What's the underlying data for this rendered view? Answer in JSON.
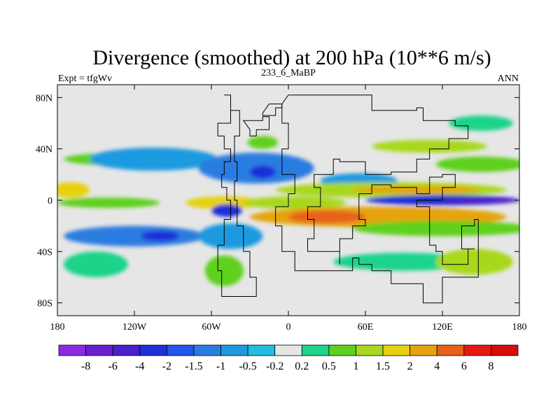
{
  "chart_data": {
    "type": "heatmap",
    "title": "Divergence (smoothed) at 200 hPa (10**6 m/s)",
    "subtitle_left": "Expt = tfgWv",
    "subtitle_center": "233_6_MaBP",
    "subtitle_right": "ANN",
    "x_ticks": [
      "180",
      "120W",
      "60W",
      "0",
      "60E",
      "120E",
      "180"
    ],
    "x_tick_values": [
      -180,
      -120,
      -60,
      0,
      60,
      120,
      180
    ],
    "y_ticks": [
      "80N",
      "40N",
      "0",
      "40S",
      "80S"
    ],
    "y_tick_values": [
      80,
      40,
      0,
      -40,
      -80
    ],
    "xlim": [
      -180,
      180
    ],
    "ylim": [
      -90,
      90
    ],
    "colorbar_labels": [
      "-8",
      "-6",
      "-4",
      "-2",
      "-1.5",
      "-1",
      "-0.5",
      "-0.2",
      "0.2",
      "0.5",
      "1",
      "1.5",
      "2",
      "4",
      "6",
      "8"
    ],
    "colorbar_colors": [
      "#8a2be2",
      "#6a1fd0",
      "#4a20c8",
      "#1f2fd8",
      "#2255e8",
      "#2a7de0",
      "#1e9ae0",
      "#22bce0",
      "#e6e6e6",
      "#1fd38a",
      "#5fd01f",
      "#a8d81f",
      "#e6d10f",
      "#e6a30f",
      "#e6621a",
      "#e61a10",
      "#d80a0a"
    ],
    "blobs": [
      {
        "lon": -130,
        "lat": 32,
        "rx": 45,
        "ry": 5,
        "level": 10
      },
      {
        "lon": -20,
        "lat": 45,
        "rx": 12,
        "ry": 5,
        "level": 10
      },
      {
        "lon": 110,
        "lat": 42,
        "rx": 45,
        "ry": 5,
        "level": 11
      },
      {
        "lon": 150,
        "lat": 28,
        "rx": 35,
        "ry": 6,
        "level": 10
      },
      {
        "lon": 150,
        "lat": 60,
        "rx": 25,
        "ry": 6,
        "level": 9
      },
      {
        "lon": -105,
        "lat": 32,
        "rx": 50,
        "ry": 9,
        "level": 6
      },
      {
        "lon": -25,
        "lat": 25,
        "rx": 45,
        "ry": 12,
        "level": 5
      },
      {
        "lon": -20,
        "lat": 22,
        "rx": 10,
        "ry": 5,
        "level": 3
      },
      {
        "lon": 55,
        "lat": 15,
        "rx": 30,
        "ry": 6,
        "level": 6
      },
      {
        "lon": -170,
        "lat": 8,
        "rx": 15,
        "ry": 6,
        "level": 12
      },
      {
        "lon": 80,
        "lat": 8,
        "rx": 90,
        "ry": 6,
        "level": 11
      },
      {
        "lon": 100,
        "lat": 8,
        "rx": 50,
        "ry": 3,
        "level": 13
      },
      {
        "lon": -140,
        "lat": -2,
        "rx": 40,
        "ry": 4,
        "level": 10
      },
      {
        "lon": -50,
        "lat": -2,
        "rx": 30,
        "ry": 5,
        "level": 12
      },
      {
        "lon": 5,
        "lat": -2,
        "rx": 40,
        "ry": 5,
        "level": 11
      },
      {
        "lon": 120,
        "lat": 0,
        "rx": 60,
        "ry": 4,
        "level": 3
      },
      {
        "lon": 150,
        "lat": 0,
        "rx": 30,
        "ry": 3,
        "level": 2
      },
      {
        "lon": -120,
        "lat": -28,
        "rx": 55,
        "ry": 8,
        "level": 5
      },
      {
        "lon": -100,
        "lat": -28,
        "rx": 15,
        "ry": 4,
        "level": 3
      },
      {
        "lon": -48,
        "lat": -8,
        "rx": 12,
        "ry": 5,
        "level": 3
      },
      {
        "lon": -45,
        "lat": -28,
        "rx": 25,
        "ry": 10,
        "level": 6
      },
      {
        "lon": 70,
        "lat": -13,
        "rx": 100,
        "ry": 8,
        "level": 13
      },
      {
        "lon": 30,
        "lat": -13,
        "rx": 30,
        "ry": 5,
        "level": 14
      },
      {
        "lon": 120,
        "lat": -22,
        "rx": 70,
        "ry": 6,
        "level": 10
      },
      {
        "lon": -150,
        "lat": -50,
        "rx": 25,
        "ry": 10,
        "level": 9
      },
      {
        "lon": -50,
        "lat": -55,
        "rx": 15,
        "ry": 12,
        "level": 10
      },
      {
        "lon": 90,
        "lat": -48,
        "rx": 55,
        "ry": 7,
        "level": 9
      },
      {
        "lon": 145,
        "lat": -48,
        "rx": 30,
        "ry": 10,
        "level": 11
      }
    ],
    "continent_outline": [
      [
        [
          -50,
          82
        ],
        [
          -45,
          60
        ],
        [
          -55,
          50
        ],
        [
          -50,
          40
        ],
        [
          -45,
          30
        ],
        [
          -50,
          20
        ],
        [
          -52,
          10
        ],
        [
          -48,
          0
        ],
        [
          -45,
          -15
        ],
        [
          -50,
          -35
        ],
        [
          -55,
          -55
        ],
        [
          -52,
          -75
        ],
        [
          -30,
          -75
        ],
        [
          -25,
          -60
        ],
        [
          -30,
          -40
        ],
        [
          -35,
          -20
        ],
        [
          -40,
          0
        ],
        [
          -42,
          15
        ],
        [
          -40,
          30
        ],
        [
          -42,
          50
        ],
        [
          -38,
          70
        ],
        [
          -45,
          82
        ]
      ],
      [
        [
          -35,
          62
        ],
        [
          -20,
          65
        ],
        [
          -15,
          55
        ],
        [
          -25,
          50
        ],
        [
          -30,
          55
        ]
      ],
      [
        [
          -15,
          75
        ],
        [
          -5,
          72
        ],
        [
          -10,
          66
        ],
        [
          -20,
          68
        ]
      ],
      [
        [
          0,
          82
        ],
        [
          55,
          82
        ],
        [
          65,
          70
        ],
        [
          100,
          72
        ],
        [
          105,
          62
        ],
        [
          130,
          58
        ],
        [
          140,
          48
        ],
        [
          125,
          40
        ],
        [
          110,
          32
        ],
        [
          100,
          22
        ],
        [
          80,
          20
        ],
        [
          60,
          30
        ],
        [
          40,
          32
        ],
        [
          35,
          20
        ],
        [
          20,
          10
        ],
        [
          25,
          -5
        ],
        [
          15,
          -15
        ],
        [
          20,
          -30
        ],
        [
          15,
          -40
        ],
        [
          40,
          -50
        ],
        [
          40,
          -30
        ],
        [
          50,
          -20
        ],
        [
          60,
          -15
        ],
        [
          55,
          5
        ],
        [
          65,
          12
        ],
        [
          80,
          10
        ],
        [
          100,
          5
        ],
        [
          110,
          18
        ],
        [
          120,
          20
        ],
        [
          130,
          10
        ],
        [
          120,
          0
        ],
        [
          100,
          -5
        ],
        [
          110,
          -35
        ],
        [
          115,
          -40
        ],
        [
          120,
          -50
        ],
        [
          135,
          -50
        ],
        [
          140,
          -38
        ],
        [
          145,
          -38
        ],
        [
          135,
          -20
        ],
        [
          145,
          -15
        ],
        [
          148,
          -60
        ],
        [
          120,
          -80
        ],
        [
          105,
          -65
        ],
        [
          95,
          -65
        ],
        [
          80,
          -55
        ],
        [
          65,
          -50
        ],
        [
          55,
          -45
        ],
        [
          50,
          -55
        ],
        [
          20,
          -55
        ],
        [
          5,
          -40
        ],
        [
          -5,
          -20
        ],
        [
          -10,
          -5
        ],
        [
          0,
          5
        ],
        [
          5,
          20
        ],
        [
          -5,
          40
        ],
        [
          0,
          60
        ],
        [
          -5,
          75
        ]
      ]
    ]
  }
}
